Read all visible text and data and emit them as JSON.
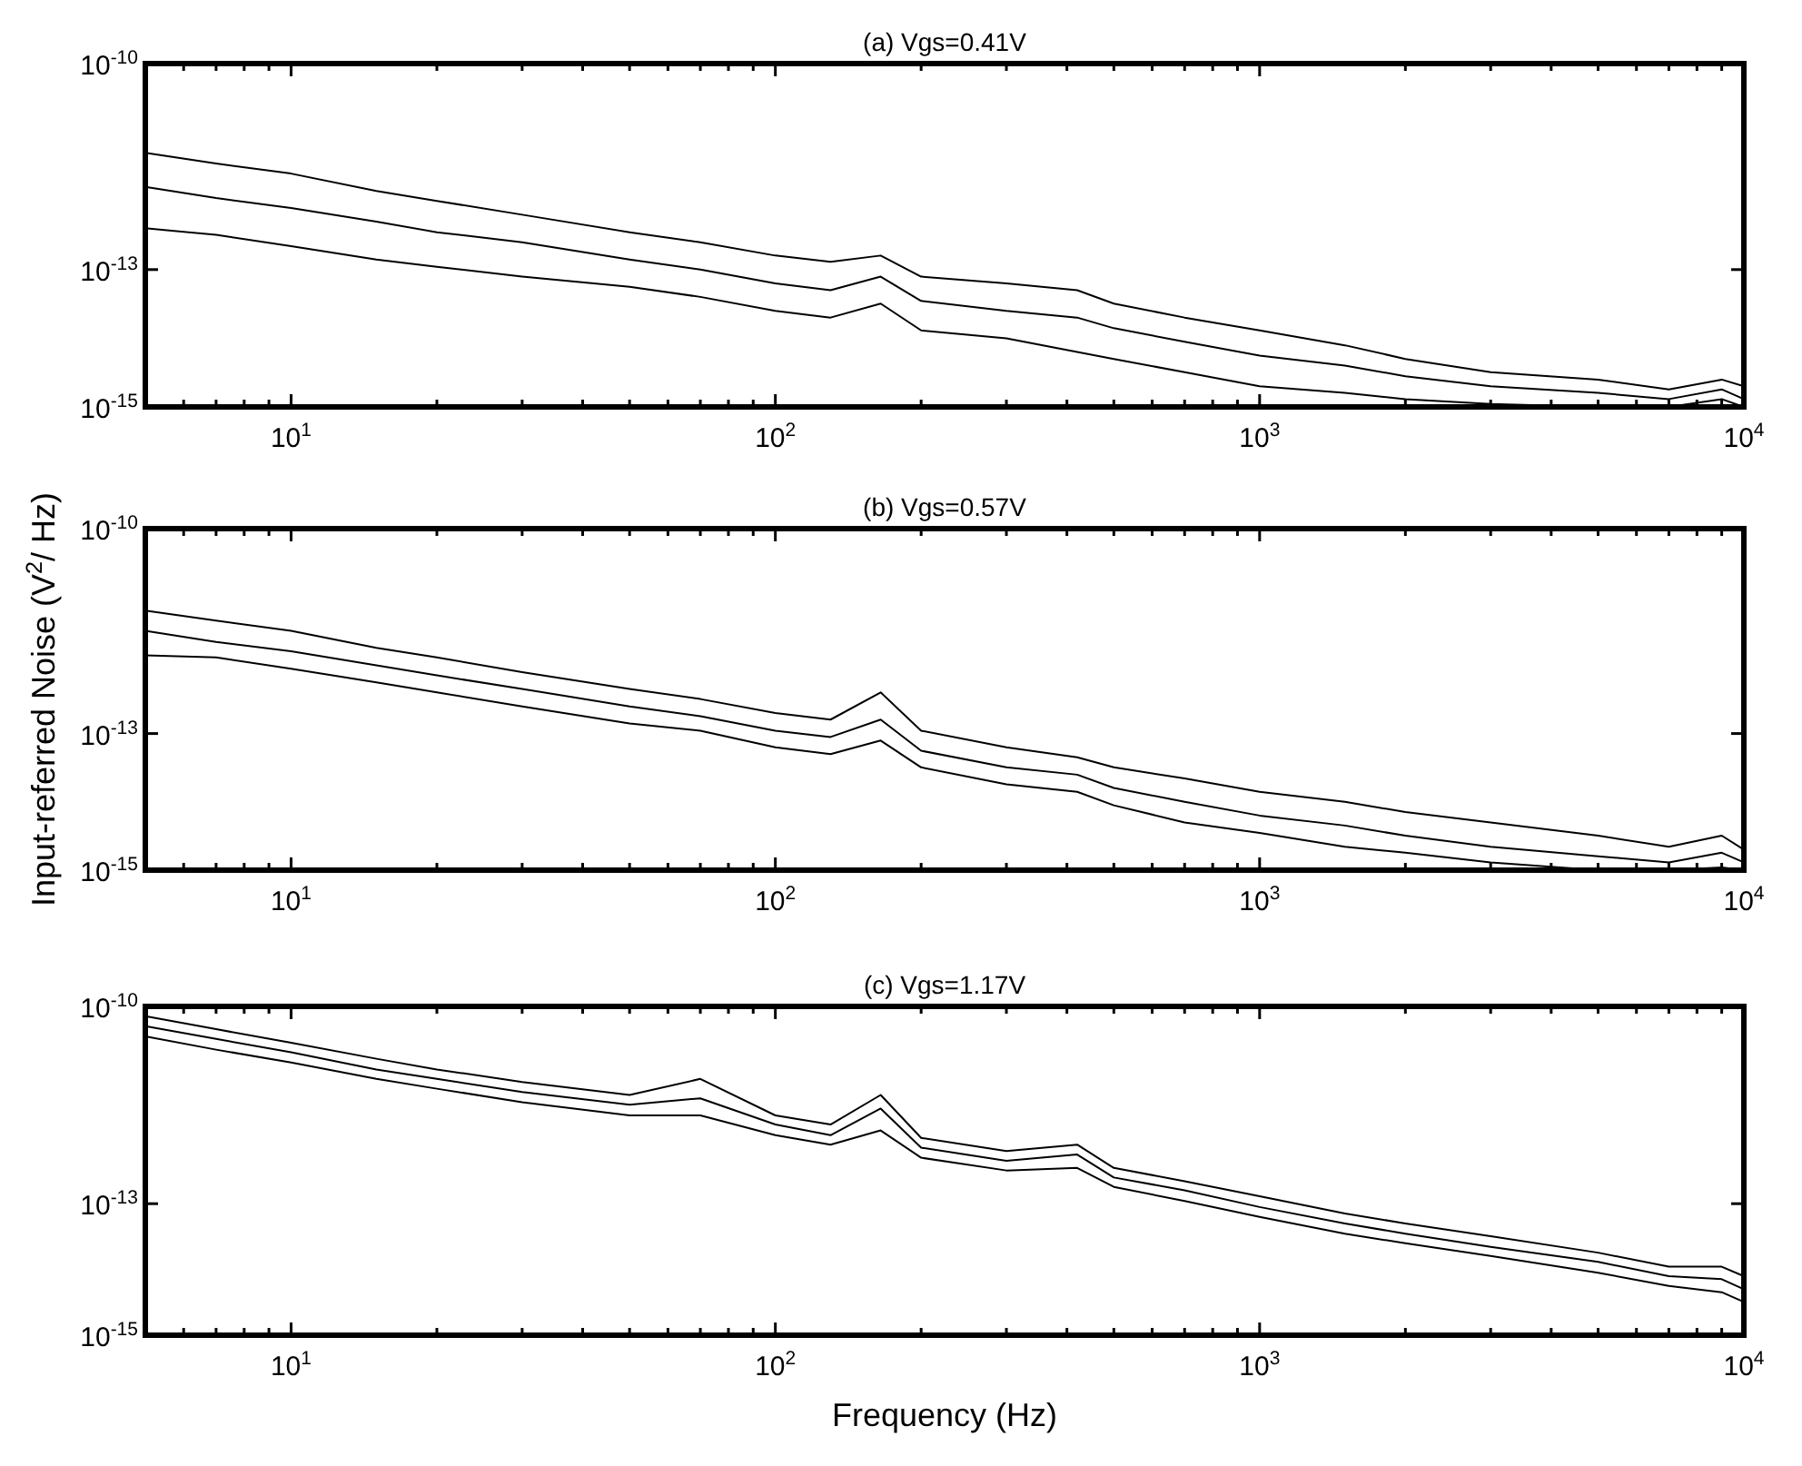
{
  "chart_data": [
    {
      "type": "line",
      "title": "(a) Vgs=0.41V",
      "x": [
        5,
        7,
        10,
        15,
        20,
        30,
        50,
        70,
        100,
        130,
        165,
        200,
        300,
        420,
        500,
        700,
        1000,
        1500,
        2000,
        3000,
        5000,
        7000,
        9000,
        10000
      ],
      "log": "xy",
      "grid": false,
      "marker": "none",
      "line_style": "solid",
      "xlim": [
        5,
        10000
      ],
      "ylim": [
        1e-15,
        1e-10
      ],
      "xticks": [
        {
          "value": 5,
          "label": null
        },
        {
          "value": 6,
          "label": null
        },
        {
          "value": 7,
          "label": null
        },
        {
          "value": 8,
          "label": null
        },
        {
          "value": 9,
          "label": null
        },
        {
          "value": 10,
          "label": "10$^{1}$"
        },
        {
          "value": 20,
          "label": null
        },
        {
          "value": 30,
          "label": null
        },
        {
          "value": 40,
          "label": null
        },
        {
          "value": 50,
          "label": null
        },
        {
          "value": 60,
          "label": null
        },
        {
          "value": 70,
          "label": null
        },
        {
          "value": 80,
          "label": null
        },
        {
          "value": 90,
          "label": null
        },
        {
          "value": 100,
          "label": "10$^{2}$"
        },
        {
          "value": 200,
          "label": null
        },
        {
          "value": 300,
          "label": null
        },
        {
          "value": 400,
          "label": null
        },
        {
          "value": 500,
          "label": null
        },
        {
          "value": 600,
          "label": null
        },
        {
          "value": 700,
          "label": null
        },
        {
          "value": 800,
          "label": null
        },
        {
          "value": 900,
          "label": null
        },
        {
          "value": 1000,
          "label": "10$^{3}$"
        },
        {
          "value": 2000,
          "label": null
        },
        {
          "value": 3000,
          "label": null
        },
        {
          "value": 4000,
          "label": null
        },
        {
          "value": 5000,
          "label": null
        },
        {
          "value": 6000,
          "label": null
        },
        {
          "value": 7000,
          "label": null
        },
        {
          "value": 8000,
          "label": null
        },
        {
          "value": 9000,
          "label": null
        },
        {
          "value": 10000,
          "label": "10$^{4}$"
        }
      ],
      "yticks": [
        {
          "value": 1e-15,
          "label": "10$^{-15}$"
        },
        {
          "value": 1e-13,
          "label": "10$^{-13}$"
        },
        {
          "value": 1e-10,
          "label": "10$^{-10}$"
        }
      ],
      "series": [
        {
          "color": "#000000",
          "values": [
            5e-12,
            3.5e-12,
            2.5e-12,
            1.4e-12,
            1e-12,
            6.3e-13,
            3.5e-13,
            2.5e-13,
            1.6e-13,
            1.3e-13,
            1.6e-13,
            7.9e-14,
            6.3e-14,
            5e-14,
            3.2e-14,
            2e-14,
            1.3e-14,
            7.9e-15,
            5e-15,
            3.2e-15,
            2.5e-15,
            1.8e-15,
            2.5e-15,
            2e-15
          ]
        },
        {
          "color": "#000000",
          "values": [
            1.6e-12,
            1.1e-12,
            7.9e-13,
            5e-13,
            3.5e-13,
            2.5e-13,
            1.4e-13,
            1e-13,
            6.3e-14,
            5e-14,
            7.9e-14,
            3.5e-14,
            2.5e-14,
            2e-14,
            1.4e-14,
            8.9e-15,
            5.6e-15,
            4e-15,
            2.8e-15,
            2e-15,
            1.6e-15,
            1.3e-15,
            1.8e-15,
            1.3e-15
          ]
        },
        {
          "color": "#000000",
          "values": [
            4e-13,
            3.2e-13,
            2.2e-13,
            1.4e-13,
            1.1e-13,
            7.9e-14,
            5.6e-14,
            4e-14,
            2.5e-14,
            2e-14,
            3.2e-14,
            1.3e-14,
            1e-14,
            6.3e-15,
            5e-15,
            3.2e-15,
            2e-15,
            1.6e-15,
            1.3e-15,
            1.1e-15,
            1e-15,
            1e-15,
            1.3e-15,
            1e-15
          ]
        }
      ]
    },
    {
      "type": "line",
      "title": "(b) Vgs=0.57V",
      "ylabel": "Input-referred Noise (V$^{2}$/ Hz)",
      "x": [
        5,
        7,
        10,
        15,
        20,
        30,
        50,
        70,
        100,
        130,
        165,
        200,
        300,
        420,
        500,
        700,
        1000,
        1500,
        2000,
        3000,
        5000,
        7000,
        9000,
        10000
      ],
      "log": "xy",
      "grid": false,
      "marker": "none",
      "line_style": "solid",
      "xlim": [
        5,
        10000
      ],
      "ylim": [
        1e-15,
        1e-10
      ],
      "xticks": [
        {
          "value": 5,
          "label": null
        },
        {
          "value": 6,
          "label": null
        },
        {
          "value": 7,
          "label": null
        },
        {
          "value": 8,
          "label": null
        },
        {
          "value": 9,
          "label": null
        },
        {
          "value": 10,
          "label": "10$^{1}$"
        },
        {
          "value": 20,
          "label": null
        },
        {
          "value": 30,
          "label": null
        },
        {
          "value": 40,
          "label": null
        },
        {
          "value": 50,
          "label": null
        },
        {
          "value": 60,
          "label": null
        },
        {
          "value": 70,
          "label": null
        },
        {
          "value": 80,
          "label": null
        },
        {
          "value": 90,
          "label": null
        },
        {
          "value": 100,
          "label": "10$^{2}$"
        },
        {
          "value": 200,
          "label": null
        },
        {
          "value": 300,
          "label": null
        },
        {
          "value": 400,
          "label": null
        },
        {
          "value": 500,
          "label": null
        },
        {
          "value": 600,
          "label": null
        },
        {
          "value": 700,
          "label": null
        },
        {
          "value": 800,
          "label": null
        },
        {
          "value": 900,
          "label": null
        },
        {
          "value": 1000,
          "label": "10$^{3}$"
        },
        {
          "value": 2000,
          "label": null
        },
        {
          "value": 3000,
          "label": null
        },
        {
          "value": 4000,
          "label": null
        },
        {
          "value": 5000,
          "label": null
        },
        {
          "value": 6000,
          "label": null
        },
        {
          "value": 7000,
          "label": null
        },
        {
          "value": 8000,
          "label": null
        },
        {
          "value": 9000,
          "label": null
        },
        {
          "value": 10000,
          "label": "10$^{4}$"
        }
      ],
      "yticks": [
        {
          "value": 1e-15,
          "label": "10$^{-15}$"
        },
        {
          "value": 1e-13,
          "label": "10$^{-13}$"
        },
        {
          "value": 1e-10,
          "label": "10$^{-10}$"
        }
      ],
      "series": [
        {
          "color": "#000000",
          "values": [
            6.3e-12,
            4.5e-12,
            3.2e-12,
            1.8e-12,
            1.3e-12,
            7.9e-13,
            4.5e-13,
            3.2e-13,
            2e-13,
            1.6e-13,
            4e-13,
            1.1e-13,
            6.3e-14,
            4.5e-14,
            3.2e-14,
            2.2e-14,
            1.4e-14,
            1e-14,
            7.1e-15,
            5e-15,
            3.2e-15,
            2.2e-15,
            3.2e-15,
            2e-15
          ]
        },
        {
          "color": "#000000",
          "values": [
            3.2e-12,
            2.2e-12,
            1.6e-12,
            1e-12,
            7.1e-13,
            4.5e-13,
            2.5e-13,
            1.8e-13,
            1.1e-13,
            8.9e-14,
            1.6e-13,
            5.6e-14,
            3.2e-14,
            2.5e-14,
            1.6e-14,
            1e-14,
            6.3e-15,
            4.5e-15,
            3.2e-15,
            2.2e-15,
            1.6e-15,
            1.3e-15,
            1.8e-15,
            1.3e-15
          ]
        },
        {
          "color": "#000000",
          "values": [
            1.4e-12,
            1.3e-12,
            8.9e-13,
            5.6e-13,
            4e-13,
            2.5e-13,
            1.4e-13,
            1.1e-13,
            6.3e-14,
            5e-14,
            7.9e-14,
            3.2e-14,
            1.8e-14,
            1.4e-14,
            8.9e-15,
            5e-15,
            3.5e-15,
            2.2e-15,
            1.8e-15,
            1.3e-15,
            1e-15,
            1e-15,
            1.1e-15,
            1e-15
          ]
        }
      ]
    },
    {
      "type": "line",
      "title": "(c) Vgs=1.17V",
      "xlabel": "Frequency (Hz)",
      "x": [
        5,
        7,
        10,
        15,
        20,
        30,
        50,
        70,
        100,
        130,
        165,
        200,
        300,
        420,
        500,
        700,
        1000,
        1500,
        2000,
        3000,
        5000,
        7000,
        9000,
        10000
      ],
      "log": "xy",
      "grid": false,
      "marker": "none",
      "line_style": "solid",
      "xlim": [
        5,
        10000
      ],
      "ylim": [
        1e-15,
        1e-10
      ],
      "xticks": [
        {
          "value": 5,
          "label": null
        },
        {
          "value": 6,
          "label": null
        },
        {
          "value": 7,
          "label": null
        },
        {
          "value": 8,
          "label": null
        },
        {
          "value": 9,
          "label": null
        },
        {
          "value": 10,
          "label": "10$^{1}$"
        },
        {
          "value": 20,
          "label": null
        },
        {
          "value": 30,
          "label": null
        },
        {
          "value": 40,
          "label": null
        },
        {
          "value": 50,
          "label": null
        },
        {
          "value": 60,
          "label": null
        },
        {
          "value": 70,
          "label": null
        },
        {
          "value": 80,
          "label": null
        },
        {
          "value": 90,
          "label": null
        },
        {
          "value": 100,
          "label": "10$^{2}$"
        },
        {
          "value": 200,
          "label": null
        },
        {
          "value": 300,
          "label": null
        },
        {
          "value": 400,
          "label": null
        },
        {
          "value": 500,
          "label": null
        },
        {
          "value": 600,
          "label": null
        },
        {
          "value": 700,
          "label": null
        },
        {
          "value": 800,
          "label": null
        },
        {
          "value": 900,
          "label": null
        },
        {
          "value": 1000,
          "label": "10$^{3}$"
        },
        {
          "value": 2000,
          "label": null
        },
        {
          "value": 3000,
          "label": null
        },
        {
          "value": 4000,
          "label": null
        },
        {
          "value": 5000,
          "label": null
        },
        {
          "value": 6000,
          "label": null
        },
        {
          "value": 7000,
          "label": null
        },
        {
          "value": 8000,
          "label": null
        },
        {
          "value": 9000,
          "label": null
        },
        {
          "value": 10000,
          "label": "10$^{4}$"
        }
      ],
      "yticks": [
        {
          "value": 1e-15,
          "label": "10$^{-15}$"
        },
        {
          "value": 1e-13,
          "label": "10$^{-13}$"
        },
        {
          "value": 1e-10,
          "label": "10$^{-10}$"
        }
      ],
      "series": [
        {
          "color": "#000000",
          "values": [
            7.1e-11,
            4.5e-11,
            2.8e-11,
            1.6e-11,
            1.1e-11,
            7.1e-12,
            4.5e-12,
            7.9e-12,
            2.2e-12,
            1.6e-12,
            4.5e-12,
            1e-12,
            6.3e-13,
            7.9e-13,
            3.5e-13,
            2.2e-13,
            1.3e-13,
            7.1e-14,
            5e-14,
            3.2e-14,
            1.8e-14,
            1.1e-14,
            1.1e-14,
            7.9e-15
          ]
        },
        {
          "color": "#000000",
          "values": [
            5e-11,
            3.2e-11,
            2e-11,
            1.1e-11,
            7.9e-12,
            5e-12,
            3.2e-12,
            4e-12,
            1.6e-12,
            1.1e-12,
            2.8e-12,
            7.1e-13,
            4.5e-13,
            5.6e-13,
            2.5e-13,
            1.6e-13,
            8.9e-14,
            5e-14,
            3.5e-14,
            2.2e-14,
            1.3e-14,
            7.9e-15,
            7.1e-15,
            5e-15
          ]
        },
        {
          "color": "#000000",
          "values": [
            3.5e-11,
            2.2e-11,
            1.4e-11,
            7.9e-12,
            5.6e-12,
            3.5e-12,
            2.2e-12,
            2.2e-12,
            1.1e-12,
            7.9e-13,
            1.3e-12,
            5e-13,
            3.2e-13,
            3.5e-13,
            1.8e-13,
            1.1e-13,
            6.3e-14,
            3.5e-14,
            2.5e-14,
            1.6e-14,
            8.9e-15,
            5.6e-15,
            4.5e-15,
            3.2e-15
          ]
        }
      ]
    }
  ]
}
